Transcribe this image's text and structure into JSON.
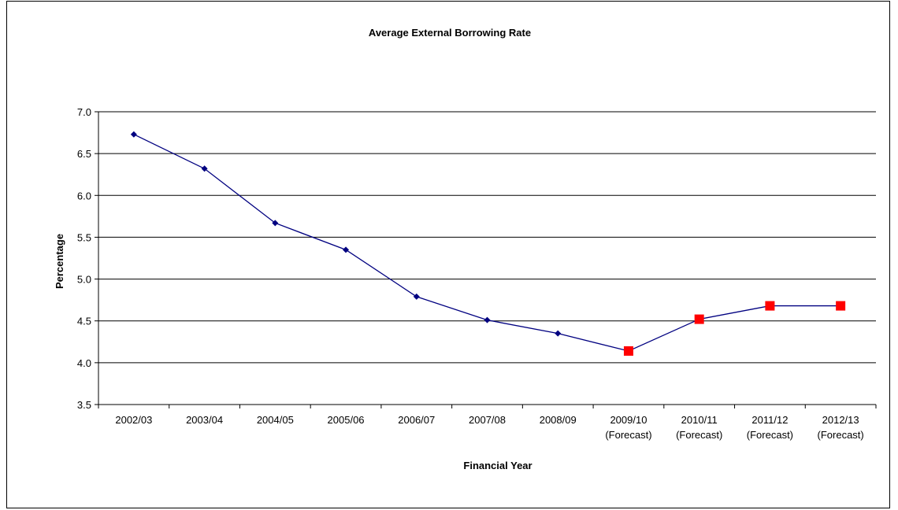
{
  "chart_data": {
    "type": "line",
    "title": "Average External Borrowing Rate",
    "xlabel": "Financial Year",
    "ylabel": "Percentage",
    "ylim": [
      3.5,
      7.0
    ],
    "yticks": [
      "3.5",
      "4.0",
      "4.5",
      "5.0",
      "5.5",
      "6.0",
      "6.5",
      "7.0"
    ],
    "grid": true,
    "legend": "none",
    "categories": [
      [
        "2002/03"
      ],
      [
        "2003/04"
      ],
      [
        "2004/05"
      ],
      [
        "2005/06"
      ],
      [
        "2006/07"
      ],
      [
        "2007/08"
      ],
      [
        "2008/09"
      ],
      [
        "2009/10",
        "(Forecast)"
      ],
      [
        "2010/11",
        "(Forecast)"
      ],
      [
        "2011/12",
        "(Forecast)"
      ],
      [
        "2012/13",
        "(Forecast)"
      ]
    ],
    "values": [
      6.73,
      6.32,
      5.67,
      5.35,
      4.79,
      4.51,
      4.35,
      4.14,
      4.52,
      4.68,
      4.68
    ],
    "marker_types": [
      "diamond",
      "diamond",
      "diamond",
      "diamond",
      "diamond",
      "diamond",
      "diamond",
      "square",
      "square",
      "square",
      "square"
    ],
    "colors": {
      "line": "#000080",
      "actual_marker": "#000080",
      "forecast_marker": "#ff0000",
      "grid": "#000000"
    }
  }
}
